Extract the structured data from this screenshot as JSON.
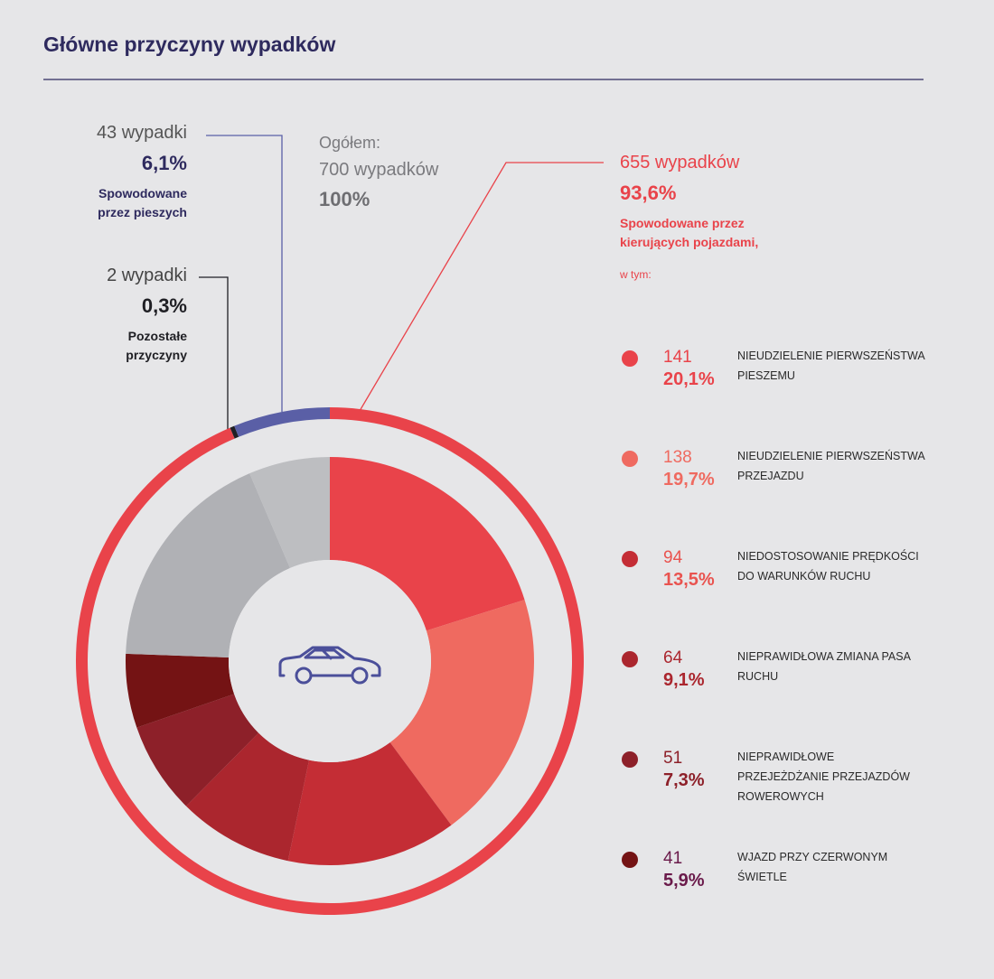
{
  "chart_data": {
    "type": "donut",
    "title": "Główne przyczyny wypadków",
    "total": {
      "label": "Ogółem:",
      "value": 700,
      "value_label": "700 wypadków",
      "share_label": "100%"
    },
    "outer": {
      "values": [
        655,
        2,
        43
      ],
      "value_labels": [
        "655 wypadków",
        "2 wypadki",
        "43 wypadki"
      ],
      "share_labels": [
        "93,6%",
        "0,3%",
        "6,1%"
      ],
      "names": [
        "Spowodowane przez kierujących pojazdami,",
        "Pozostałe przyczyny",
        "Spowodowane przez pieszych"
      ],
      "colors": [
        "#e9434a",
        "#1f1f24",
        "#5a5fa6"
      ]
    },
    "note": "w tym:",
    "inner": {
      "categories": [
        "NIEUDZIELENIE PIERWSZEŃSTWA PIESZEMU",
        "NIEUDZIELENIE PIERWSZEŃSTWA PRZEJAZDU",
        "NIEDOSTOSOWANIE PRĘDKOŚCI DO WARUNKÓW RUCHU",
        "NIEPRAWIDŁOWA ZMIANA PASA RUCHU",
        "NIEPRAWIDŁOWE PRZEJEŻDŻANIE PRZEJAZDÓW ROWEROWYCH",
        "WJAZD PRZY CZERWONYM ŚWIETLE",
        null,
        null
      ],
      "values": [
        141,
        138,
        94,
        64,
        51,
        41,
        126,
        45
      ],
      "share_labels": [
        "20,1%",
        "19,7%",
        "13,5%",
        "9,1%",
        "7,3%",
        "5,9%",
        null,
        null
      ],
      "colors": [
        "#e9434a",
        "#ef6a60",
        "#c42d35",
        "#ab262e",
        "#8d2029",
        "#741314",
        "#b0b1b5",
        "#bdbec1"
      ]
    }
  }
}
